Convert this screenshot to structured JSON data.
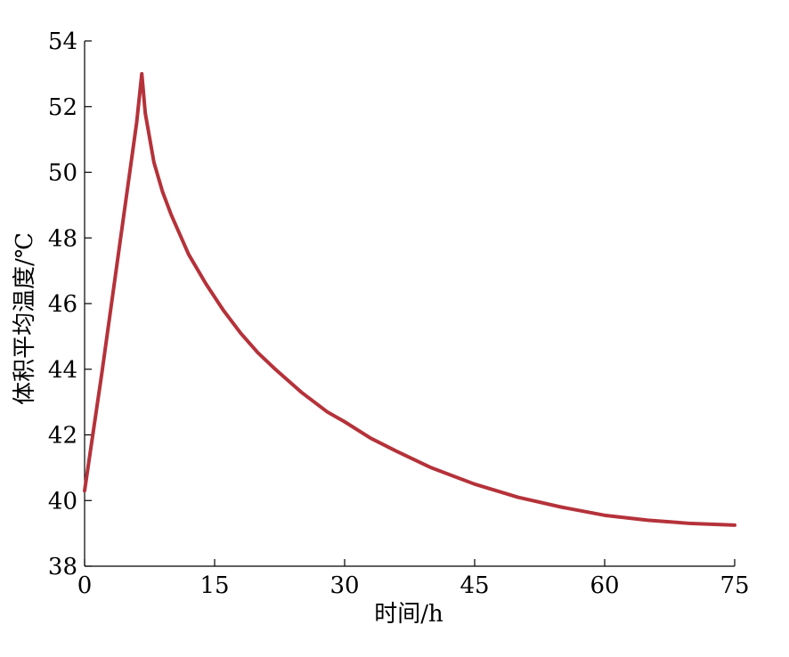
{
  "chart_data": {
    "type": "line",
    "title": "",
    "xlabel": "时间/h",
    "ylabel": "体积平均温度/℃",
    "xlim": [
      0,
      75
    ],
    "ylim": [
      38,
      54
    ],
    "xticks": [
      0,
      15,
      30,
      45,
      60,
      75
    ],
    "yticks": [
      38,
      40,
      42,
      44,
      46,
      48,
      50,
      52,
      54
    ],
    "grid": false,
    "legend": "none",
    "series": [
      {
        "color": "#b5323a",
        "x": [
          0,
          1,
          2,
          3,
          4,
          5,
          6,
          6.6,
          7,
          8,
          9,
          10,
          12,
          14,
          16,
          18,
          20,
          22,
          25,
          28,
          30,
          33,
          36,
          40,
          45,
          50,
          55,
          60,
          65,
          70,
          75
        ],
        "y": [
          40.3,
          42.1,
          43.9,
          45.8,
          47.7,
          49.6,
          51.5,
          53.0,
          51.8,
          50.3,
          49.4,
          48.7,
          47.5,
          46.6,
          45.8,
          45.1,
          44.5,
          44.0,
          43.3,
          42.7,
          42.4,
          41.9,
          41.5,
          41.0,
          40.5,
          40.1,
          39.8,
          39.55,
          39.4,
          39.3,
          39.25
        ]
      }
    ]
  }
}
